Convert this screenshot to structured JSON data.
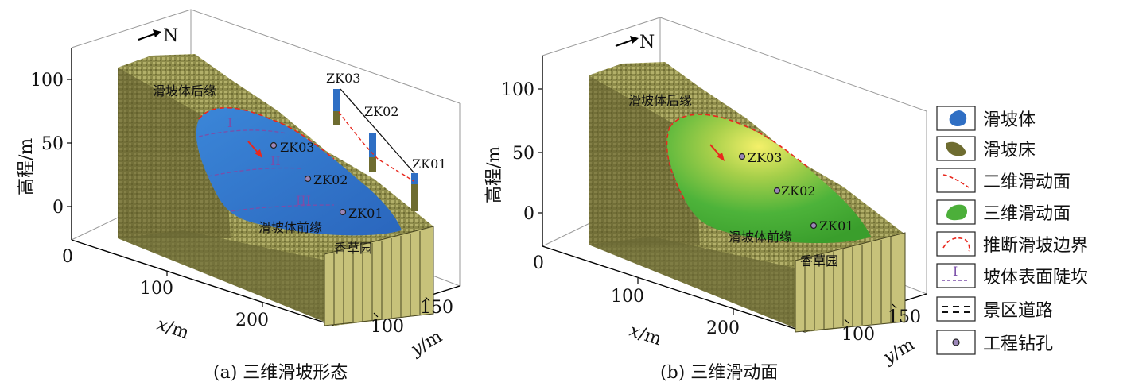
{
  "panel_a": {
    "north": "N",
    "z_ticks": [
      "100",
      "50",
      "0"
    ],
    "z_label": "高程/m",
    "x_ticks": [
      "0",
      "100",
      "200"
    ],
    "x_label_var": "x",
    "x_label_unit": "/m",
    "y_ticks": [
      "100",
      "150"
    ],
    "y_label_var": "y",
    "y_label_unit": "/m",
    "rear_edge": "滑坡体后缘",
    "front_edge": "滑坡体前缘",
    "garden": "香草园",
    "boreholes": [
      "ZK03",
      "ZK02",
      "ZK01"
    ],
    "inset_boreholes": [
      "ZK03",
      "ZK02",
      "ZK01"
    ],
    "scarps": [
      "I",
      "II",
      "III"
    ],
    "caption": "(a) 三维滑坡形态"
  },
  "panel_b": {
    "north": "N",
    "z_ticks": [
      "100",
      "50",
      "0"
    ],
    "z_label": "高程/m",
    "x_ticks": [
      "0",
      "100",
      "200"
    ],
    "x_label_var": "x",
    "x_label_unit": "/m",
    "y_ticks": [
      "100",
      "150"
    ],
    "y_label_var": "y",
    "y_label_unit": "/m",
    "rear_edge": "滑坡体后缘",
    "front_edge": "滑坡体前缘",
    "garden": "香草园",
    "boreholes": [
      "ZK03",
      "ZK02",
      "ZK01"
    ],
    "caption": "(b) 三维滑动面"
  },
  "legend": {
    "items": [
      "滑坡体",
      "滑坡床",
      "二维滑动面",
      "三维滑动面",
      "推断滑坡边界",
      "坡体表面陡坎",
      "景区道路",
      "工程钻孔"
    ],
    "scarp_symbol": "I",
    "colors": {
      "slide_body": "#2f6fc4",
      "slide_bed": "#8c8a3e",
      "surface_3d": "#4caf3a",
      "boundary": "#e8281e",
      "scarp": "#7b4ea8"
    }
  }
}
